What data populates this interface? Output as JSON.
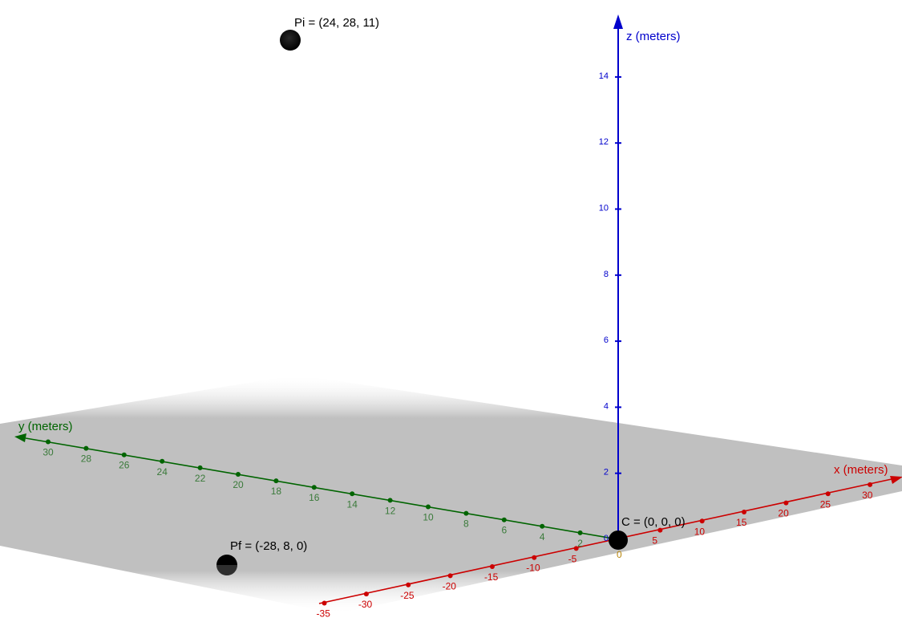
{
  "axes": {
    "x": {
      "title": "x (meters)",
      "color": "#cc0000",
      "label_color": "#cc0000",
      "tick_labels": [
        "-35",
        "-30",
        "-25",
        "-20",
        "-15",
        "-10",
        "-5",
        "5",
        "10",
        "15",
        "20",
        "25",
        "30"
      ]
    },
    "y": {
      "title": "y (meters)",
      "color": "#006400",
      "label_color": "#3a7a3a",
      "tick_labels": [
        "2",
        "4",
        "6",
        "8",
        "10",
        "12",
        "14",
        "16",
        "18",
        "20",
        "22",
        "24",
        "26",
        "28",
        "30"
      ]
    },
    "z": {
      "title": "z (meters)",
      "color": "#0000cc",
      "label_color": "#0000cc",
      "tick_labels": [
        "0",
        "2",
        "4",
        "6",
        "8",
        "10",
        "12",
        "14"
      ]
    },
    "origin_label": "0",
    "origin_label_color": "#b8860b"
  },
  "points": [
    {
      "id": "pi",
      "label": "Pi = (24, 28, 11)"
    },
    {
      "id": "pf",
      "label": "Pf = (-28, 8, 0)"
    },
    {
      "id": "c",
      "label": "C = (0, 0, 0)"
    }
  ],
  "plane_color": "#bdbdbd"
}
